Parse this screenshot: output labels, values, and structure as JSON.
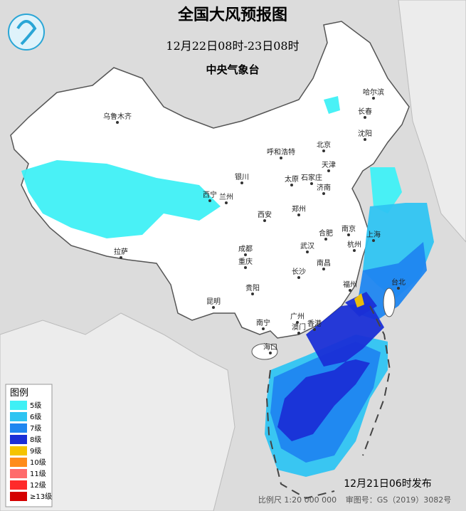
{
  "header": {
    "title": "全国大风预报图",
    "period": "12月22日08时-23日08时",
    "agency": "中央气象台"
  },
  "legend": {
    "title": "图例",
    "items": [
      {
        "label": "5级",
        "color": "#3ff0f5"
      },
      {
        "label": "6级",
        "color": "#2fc4f2"
      },
      {
        "label": "7级",
        "color": "#1f86f0"
      },
      {
        "label": "8级",
        "color": "#1a2fd6"
      },
      {
        "label": "9级",
        "color": "#f5c400"
      },
      {
        "label": "10级",
        "color": "#ff8c1a"
      },
      {
        "label": "11级",
        "color": "#ff6b6b"
      },
      {
        "label": "12级",
        "color": "#ff2a2a"
      },
      {
        "label": "≥13级",
        "color": "#d40000"
      }
    ]
  },
  "cities": [
    "乌鲁木齐",
    "哈尔滨",
    "长春",
    "沈阳",
    "北京",
    "天津",
    "呼和浩特",
    "石家庄",
    "太原",
    "济南",
    "银川",
    "西宁",
    "兰州",
    "西安",
    "郑州",
    "合肥",
    "南京",
    "上海",
    "杭州",
    "武汉",
    "成都",
    "重庆",
    "拉萨",
    "长沙",
    "南昌",
    "福州",
    "台北",
    "贵阳",
    "昆明",
    "南宁",
    "广州",
    "澳门",
    "香港",
    "海口"
  ],
  "footer": {
    "issued": "12月21日06时发布",
    "scale": "比例尺 1:20 000 000",
    "review": "审图号：GS（2019）3082号"
  }
}
